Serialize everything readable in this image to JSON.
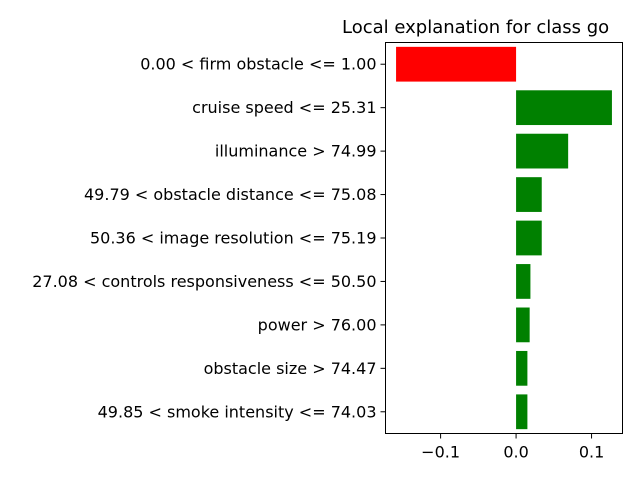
{
  "chart_data": {
    "type": "bar",
    "orientation": "horizontal",
    "title": "Local explanation for class go",
    "categories": [
      "0.00 < firm obstacle <= 1.00",
      "cruise speed <= 25.31",
      "illuminance > 74.99",
      "49.79 < obstacle distance <= 75.08",
      "50.36 < image resolution <= 75.19",
      "27.08 < controls responsiveness <= 50.50",
      "power > 76.00",
      "obstacle size > 74.47",
      "49.85 < smoke intensity <= 74.03"
    ],
    "values": [
      -0.159,
      0.127,
      0.069,
      0.034,
      0.034,
      0.019,
      0.018,
      0.015,
      0.015
    ],
    "colors": {
      "positive": "#008000",
      "negative": "#ff0000"
    },
    "xlim": [
      -0.173,
      0.141
    ],
    "xticks": [
      -0.1,
      0.0,
      0.1
    ],
    "xtick_labels": [
      "−0.1",
      "0.0",
      "0.1"
    ],
    "grid": false,
    "legend": "none"
  }
}
